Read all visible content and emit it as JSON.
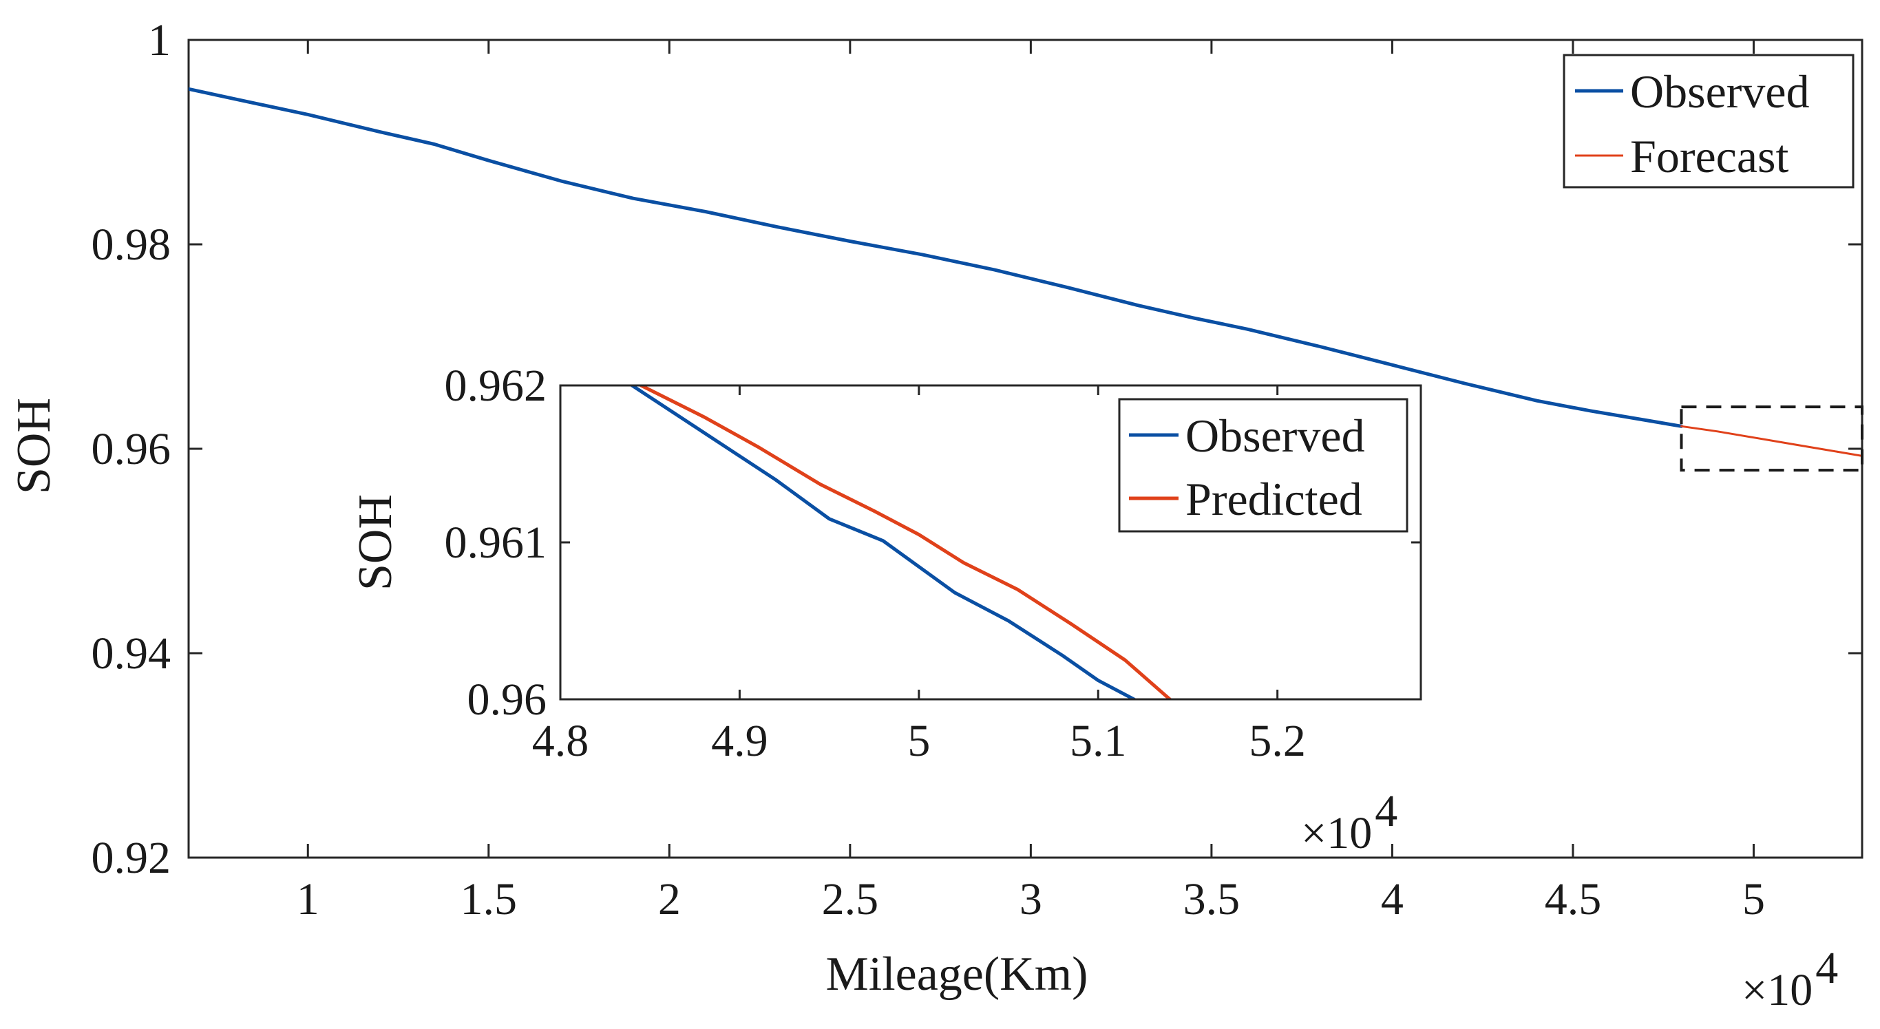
{
  "chart_data": [
    {
      "id": "main",
      "type": "line",
      "xlabel": "Mileage(Km)",
      "ylabel": "SOH",
      "x_multiplier_label": "×10",
      "x_multiplier_exponent": "4",
      "xlim": [
        6700,
        53000
      ],
      "ylim": [
        0.92,
        1.0
      ],
      "xticks": [
        10000,
        15000,
        20000,
        25000,
        30000,
        35000,
        40000,
        45000,
        50000
      ],
      "xtick_labels": [
        "1",
        "1.5",
        "2",
        "2.5",
        "3",
        "3.5",
        "4",
        "4.5",
        "5"
      ],
      "yticks": [
        0.92,
        0.94,
        0.96,
        0.98,
        1.0
      ],
      "ytick_labels": [
        "0.92",
        "0.94",
        "0.96",
        "0.98",
        "1"
      ],
      "grid": false,
      "legend_position": "top-right",
      "series": [
        {
          "name": "Observed",
          "color": "#0a4fa3",
          "x": [
            6700,
            8000,
            10000,
            12000,
            13500,
            15000,
            17000,
            19000,
            21000,
            23000,
            25000,
            27000,
            29000,
            31000,
            33000,
            34500,
            36000,
            38000,
            40000,
            42000,
            44000,
            45500,
            47000,
            48000
          ],
          "y": [
            0.9952,
            0.9942,
            0.9927,
            0.991,
            0.9898,
            0.9882,
            0.9862,
            0.9845,
            0.9832,
            0.9817,
            0.9803,
            0.979,
            0.9775,
            0.9758,
            0.974,
            0.9728,
            0.9717,
            0.97,
            0.9682,
            0.9664,
            0.9647,
            0.9637,
            0.9628,
            0.9622
          ]
        },
        {
          "name": "Forecast",
          "color": "#e0411a",
          "x": [
            48000,
            49000,
            50000,
            51000,
            52000,
            53000
          ],
          "y": [
            0.9622,
            0.9617,
            0.9611,
            0.9605,
            0.9599,
            0.9593
          ]
        }
      ],
      "highlight_box": {
        "x": [
          48000,
          53000
        ],
        "y": [
          0.9579,
          0.9641
        ]
      }
    },
    {
      "id": "inset",
      "type": "line",
      "xlabel": "",
      "ylabel": "SOH",
      "x_multiplier_label": "×10",
      "x_multiplier_exponent": "4",
      "xlim": [
        48000,
        52800
      ],
      "ylim": [
        0.96,
        0.962
      ],
      "xticks": [
        48000,
        49000,
        50000,
        51000,
        52000
      ],
      "xtick_labels": [
        "4.8",
        "4.9",
        "5",
        "5.1",
        "5.2"
      ],
      "yticks": [
        0.96,
        0.961,
        0.962
      ],
      "ytick_labels": [
        "0.96",
        "0.961",
        "0.962"
      ],
      "grid": false,
      "legend_position": "top-right",
      "series": [
        {
          "name": "Observed",
          "color": "#0a4fa3",
          "x": [
            48400,
            48800,
            49200,
            49500,
            49800,
            50200,
            50500,
            50800,
            51000,
            51200,
            51350
          ],
          "y": [
            0.962,
            0.9617,
            0.9614,
            0.96115,
            0.96101,
            0.96068,
            0.9605,
            0.96028,
            0.96012,
            0.96,
            0.9599
          ]
        },
        {
          "name": "Predicted",
          "color": "#e0411a",
          "x": [
            48450,
            48800,
            49100,
            49450,
            49750,
            50000,
            50250,
            50550,
            50850,
            51150,
            51500
          ],
          "y": [
            0.962,
            0.9618,
            0.96161,
            0.96137,
            0.9612,
            0.96105,
            0.96087,
            0.9607,
            0.96048,
            0.96025,
            0.9599
          ]
        }
      ]
    }
  ]
}
